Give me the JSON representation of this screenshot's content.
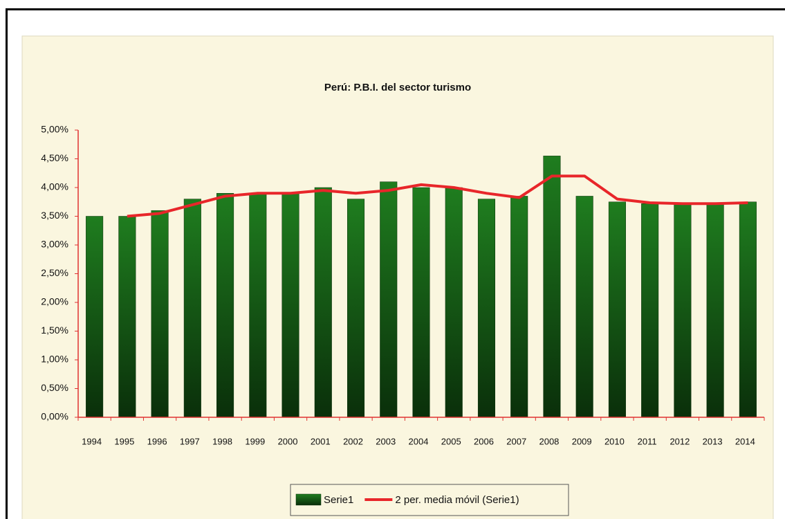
{
  "chart_data": {
    "type": "bar",
    "title": "Perú: P.B.I. del sector turismo",
    "categories": [
      "1994",
      "1995",
      "1996",
      "1997",
      "1998",
      "1999",
      "2000",
      "2001",
      "2002",
      "2003",
      "2004",
      "2005",
      "2006",
      "2007",
      "2008",
      "2009",
      "2010",
      "2011",
      "2012",
      "2013",
      "2014"
    ],
    "series": [
      {
        "name": "Serie1",
        "type": "bar",
        "color": "#1f7d1f",
        "values": [
          3.5,
          3.5,
          3.6,
          3.8,
          3.9,
          3.9,
          3.9,
          4.0,
          3.8,
          4.1,
          4.0,
          4.0,
          3.8,
          3.85,
          4.55,
          3.85,
          3.75,
          3.72,
          3.72,
          3.72,
          3.75
        ]
      },
      {
        "name": "2 per. media móvil (Serie1)",
        "type": "line",
        "color": "#e8262a",
        "values": [
          null,
          3.5,
          3.55,
          3.7,
          3.85,
          3.9,
          3.9,
          3.95,
          3.9,
          3.95,
          4.05,
          4.0,
          3.9,
          3.825,
          4.2,
          4.2,
          3.8,
          3.735,
          3.72,
          3.72,
          3.735
        ]
      }
    ],
    "ylim": [
      0,
      5
    ],
    "yticks": [
      {
        "value": 0,
        "label": "0,00%"
      },
      {
        "value": 0.5,
        "label": "0,50%"
      },
      {
        "value": 1,
        "label": "1,00%"
      },
      {
        "value": 1.5,
        "label": "1,50%"
      },
      {
        "value": 2,
        "label": "2,00%"
      },
      {
        "value": 2.5,
        "label": "2,50%"
      },
      {
        "value": 3,
        "label": "3,00%"
      },
      {
        "value": 3.5,
        "label": "3,50%"
      },
      {
        "value": 4,
        "label": "4,00%"
      },
      {
        "value": 4.5,
        "label": "4,50%"
      },
      {
        "value": 5,
        "label": "5,00%"
      }
    ],
    "axis_color": "#e03030",
    "grid": false,
    "legend": "bottom"
  }
}
